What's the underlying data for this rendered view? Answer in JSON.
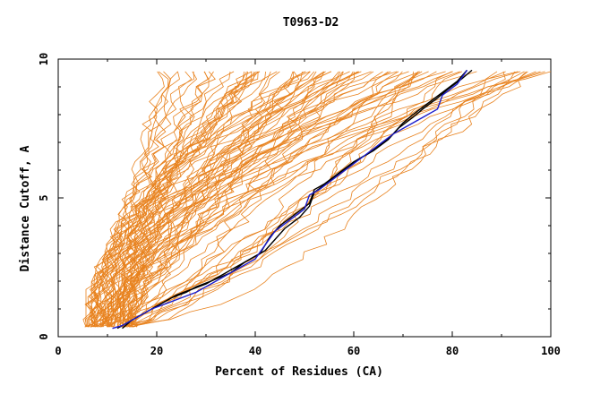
{
  "chart_data": {
    "type": "line",
    "title": "T0963-D2",
    "xlabel": "Percent of Residues (CA)",
    "ylabel": "Distance Cutoff, A",
    "xlim": [
      0,
      100
    ],
    "ylim": [
      0,
      10
    ],
    "x_ticks": [
      0,
      20,
      40,
      60,
      80,
      100
    ],
    "y_ticks": [
      0,
      5,
      10
    ],
    "grid": false,
    "colors": {
      "models": "#e8821e",
      "highlight_black": "#000000",
      "highlight_blue": "#1c1ccc"
    },
    "orange_model_count": 90,
    "highlight_series": [
      {
        "color": "#000000",
        "x": [
          12,
          14,
          17,
          20,
          23,
          26,
          28,
          31,
          35,
          38,
          41,
          43,
          45,
          48,
          51,
          52,
          54,
          57,
          60,
          63,
          66,
          68,
          70,
          72,
          75,
          78,
          81,
          83
        ],
        "y": [
          0.3,
          0.5,
          0.8,
          1.1,
          1.4,
          1.6,
          1.8,
          2.0,
          2.3,
          2.7,
          3.0,
          3.6,
          4.0,
          4.4,
          4.8,
          5.3,
          5.5,
          5.9,
          6.3,
          6.6,
          7.0,
          7.3,
          7.7,
          8.0,
          8.4,
          8.8,
          9.2,
          9.6
        ]
      },
      {
        "color": "#000000",
        "x": [
          13,
          15,
          18,
          21,
          24,
          27,
          30,
          33,
          36,
          39,
          42,
          44,
          46,
          49,
          51,
          52,
          55,
          58,
          61,
          64,
          67,
          69,
          72,
          74,
          77,
          79,
          82,
          84
        ],
        "y": [
          0.3,
          0.6,
          0.9,
          1.2,
          1.5,
          1.7,
          1.9,
          2.2,
          2.5,
          2.8,
          3.1,
          3.5,
          3.9,
          4.3,
          4.7,
          5.2,
          5.6,
          6.0,
          6.4,
          6.7,
          7.1,
          7.5,
          7.9,
          8.2,
          8.6,
          8.9,
          9.3,
          9.6
        ]
      },
      {
        "color": "#1c1ccc",
        "x": [
          11,
          13,
          16,
          19,
          22,
          25,
          28,
          31,
          34,
          37,
          40,
          42,
          44,
          47,
          50,
          51,
          53,
          56,
          59,
          62,
          65,
          68,
          71,
          74,
          77,
          78,
          81,
          83
        ],
        "y": [
          0.3,
          0.4,
          0.7,
          1.0,
          1.2,
          1.4,
          1.6,
          1.9,
          2.2,
          2.5,
          2.8,
          3.3,
          3.8,
          4.2,
          4.6,
          5.1,
          5.3,
          5.7,
          6.1,
          6.5,
          6.9,
          7.3,
          7.6,
          7.9,
          8.2,
          8.7,
          9.1,
          9.6
        ]
      }
    ]
  }
}
